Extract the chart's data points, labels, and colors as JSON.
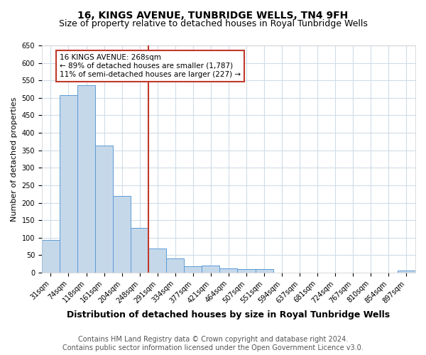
{
  "title": "16, KINGS AVENUE, TUNBRIDGE WELLS, TN4 9FH",
  "subtitle": "Size of property relative to detached houses in Royal Tunbridge Wells",
  "xlabel": "Distribution of detached houses by size in Royal Tunbridge Wells",
  "ylabel": "Number of detached properties",
  "categories": [
    "31sqm",
    "74sqm",
    "118sqm",
    "161sqm",
    "204sqm",
    "248sqm",
    "291sqm",
    "334sqm",
    "377sqm",
    "421sqm",
    "464sqm",
    "507sqm",
    "551sqm",
    "594sqm",
    "637sqm",
    "681sqm",
    "724sqm",
    "767sqm",
    "810sqm",
    "854sqm",
    "897sqm"
  ],
  "values": [
    93,
    507,
    537,
    363,
    220,
    128,
    70,
    40,
    18,
    20,
    13,
    10,
    10,
    0,
    0,
    0,
    0,
    0,
    0,
    0,
    7
  ],
  "bar_color": "#c5d8ea",
  "bar_edge_color": "#5b9bd5",
  "vline_x": 5.5,
  "vline_color": "#c0392b",
  "ann_line1": "16 KINGS AVENUE: 268sqm",
  "ann_line2": "← 89% of detached houses are smaller (1,787)",
  "ann_line3": "11% of semi-detached houses are larger (227) →",
  "annotation_box_color": "#c0392b",
  "ylim": [
    0,
    650
  ],
  "yticks": [
    0,
    50,
    100,
    150,
    200,
    250,
    300,
    350,
    400,
    450,
    500,
    550,
    600,
    650
  ],
  "footer_line1": "Contains HM Land Registry data © Crown copyright and database right 2024.",
  "footer_line2": "Contains public sector information licensed under the Open Government Licence v3.0.",
  "bg_color": "#ffffff",
  "plot_bg_color": "#ffffff",
  "grid_color": "#d0dce8",
  "title_fontsize": 10,
  "subtitle_fontsize": 9,
  "xlabel_fontsize": 9,
  "ylabel_fontsize": 8,
  "tick_fontsize": 7,
  "footer_fontsize": 7
}
